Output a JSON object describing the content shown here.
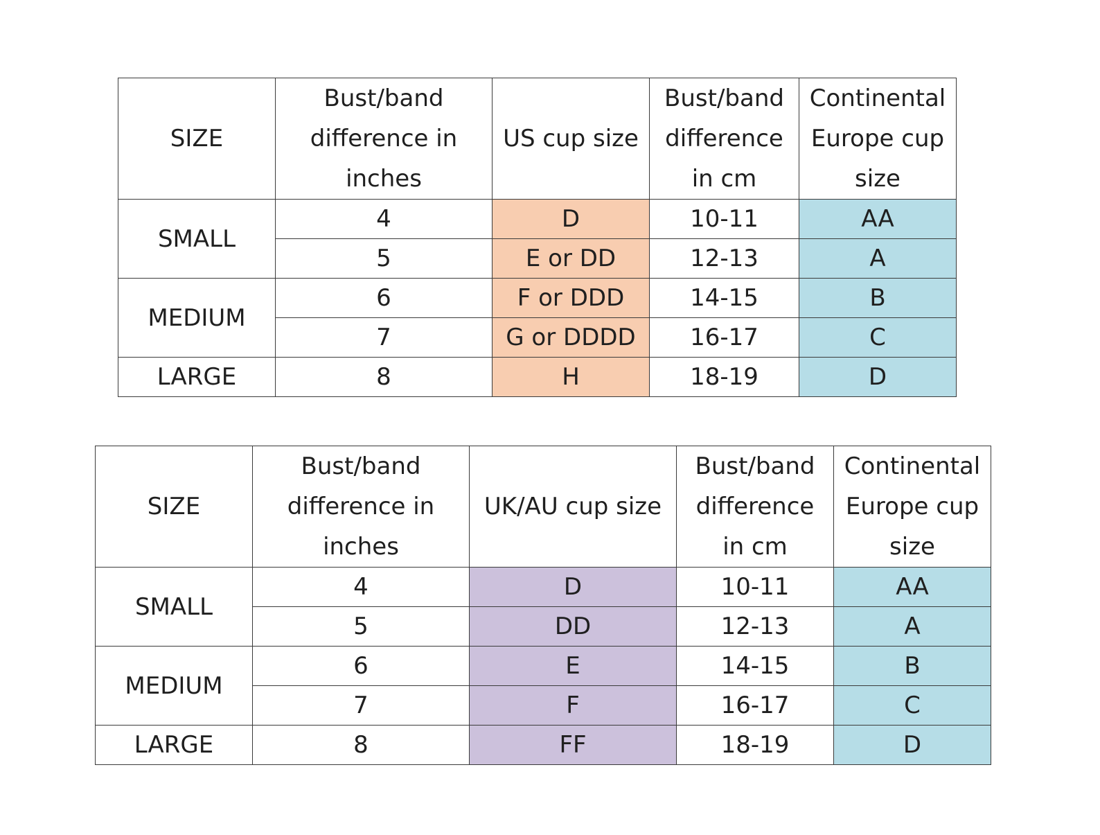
{
  "tables": [
    {
      "headers": {
        "size": "SIZE",
        "diff_in": [
          "Bust/band",
          "difference in",
          "inches"
        ],
        "cup": "US cup size",
        "diff_cm": [
          "Bust/band",
          "difference",
          "in cm"
        ],
        "eu": [
          "Continental",
          "Europe cup",
          "size"
        ]
      },
      "groups": [
        "SMALL",
        "MEDIUM",
        "LARGE"
      ],
      "rows": [
        {
          "inches": "4",
          "cup": "D",
          "cm": "10-11",
          "eu": "AA"
        },
        {
          "inches": "5",
          "cup": "E or DD",
          "cm": "12-13",
          "eu": "A"
        },
        {
          "inches": "6",
          "cup": "F or DDD",
          "cm": "14-15",
          "eu": "B"
        },
        {
          "inches": "7",
          "cup": "G or DDDD",
          "cm": "16-17",
          "eu": "C"
        },
        {
          "inches": "8",
          "cup": "H",
          "cm": "18-19",
          "eu": "D"
        }
      ],
      "cup_color": "#f8cdb0",
      "eu_color": "#b6dde7"
    },
    {
      "headers": {
        "size": "SIZE",
        "diff_in": [
          "Bust/band",
          "difference in",
          "inches"
        ],
        "cup": "UK/AU cup size",
        "diff_cm": [
          "Bust/band",
          "difference",
          "in cm"
        ],
        "eu": [
          "Continental",
          "Europe cup",
          "size"
        ]
      },
      "groups": [
        "SMALL",
        "MEDIUM",
        "LARGE"
      ],
      "rows": [
        {
          "inches": "4",
          "cup": "D",
          "cm": "10-11",
          "eu": "AA"
        },
        {
          "inches": "5",
          "cup": "DD",
          "cm": "12-13",
          "eu": "A"
        },
        {
          "inches": "6",
          "cup": "E",
          "cm": "14-15",
          "eu": "B"
        },
        {
          "inches": "7",
          "cup": "F",
          "cm": "16-17",
          "eu": "C"
        },
        {
          "inches": "8",
          "cup": "FF",
          "cm": "18-19",
          "eu": "D"
        }
      ],
      "cup_color": "#ccc1dc",
      "eu_color": "#b6dde7"
    }
  ]
}
